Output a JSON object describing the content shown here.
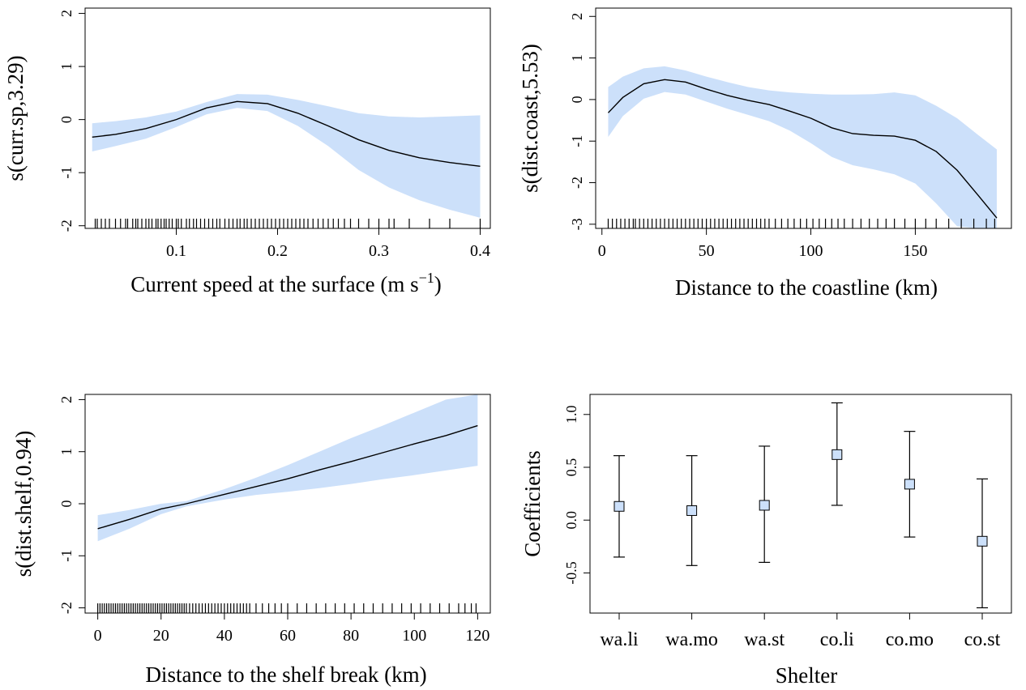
{
  "chart_data": [
    {
      "type": "line",
      "panel": "top-left",
      "xlabel": "Current speed at the surface (m s",
      "xlabel_sup": "−1",
      "xlabel_close": ")",
      "ylabel": "s(curr.sp,3.29)",
      "xlim": [
        0.01,
        0.41
      ],
      "ylim": [
        -2.05,
        2.1
      ],
      "xticks": [
        0.1,
        0.2,
        0.3,
        0.4
      ],
      "xtick_labels": [
        "0.1",
        "0.2",
        "0.3",
        "0.4"
      ],
      "yticks": [
        -2,
        -1,
        0,
        1,
        2
      ],
      "ytick_labels": [
        "-2",
        "-1",
        "0",
        "1",
        "2"
      ],
      "band_color": "#cce0fa",
      "x": [
        0.017,
        0.04,
        0.07,
        0.1,
        0.13,
        0.16,
        0.19,
        0.22,
        0.25,
        0.28,
        0.31,
        0.34,
        0.37,
        0.4
      ],
      "fit": [
        -0.33,
        -0.28,
        -0.17,
        0.0,
        0.22,
        0.34,
        0.3,
        0.12,
        -0.12,
        -0.38,
        -0.58,
        -0.72,
        -0.81,
        -0.88
      ],
      "upper": [
        -0.07,
        -0.03,
        0.04,
        0.15,
        0.33,
        0.48,
        0.47,
        0.37,
        0.25,
        0.12,
        0.06,
        0.04,
        0.06,
        0.08
      ],
      "lower": [
        -0.6,
        -0.5,
        -0.36,
        -0.14,
        0.1,
        0.22,
        0.16,
        -0.12,
        -0.5,
        -0.95,
        -1.28,
        -1.52,
        -1.7,
        -1.85
      ],
      "rug": [
        0.02,
        0.022,
        0.026,
        0.03,
        0.034,
        0.04,
        0.045,
        0.05,
        0.052,
        0.057,
        0.06,
        0.062,
        0.066,
        0.07,
        0.073,
        0.076,
        0.08,
        0.082,
        0.085,
        0.088,
        0.09,
        0.093,
        0.096,
        0.1,
        0.102,
        0.105,
        0.11,
        0.113,
        0.117,
        0.12,
        0.124,
        0.128,
        0.132,
        0.136,
        0.14,
        0.143,
        0.148,
        0.152,
        0.156,
        0.16,
        0.163,
        0.167,
        0.17,
        0.174,
        0.178,
        0.182,
        0.186,
        0.19,
        0.194,
        0.198,
        0.202,
        0.206,
        0.21,
        0.214,
        0.218,
        0.222,
        0.226,
        0.23,
        0.235,
        0.24,
        0.245,
        0.25,
        0.255,
        0.26,
        0.266,
        0.272,
        0.28,
        0.29,
        0.3,
        0.31,
        0.315,
        0.33,
        0.35,
        0.37,
        0.4
      ]
    },
    {
      "type": "line",
      "panel": "top-right",
      "xlabel": "Distance to the coastline (km)",
      "ylabel": "s(dist.coast,5.53)",
      "xlim": [
        -3,
        196
      ],
      "ylim": [
        -3.1,
        2.2
      ],
      "xticks": [
        0,
        50,
        100,
        150
      ],
      "xtick_labels": [
        "0",
        "50",
        "100",
        "150"
      ],
      "yticks": [
        -3,
        -2,
        -1,
        0,
        1,
        2
      ],
      "ytick_labels": [
        "-3",
        "-2",
        "-1",
        "0",
        "1",
        "2"
      ],
      "band_color": "#cce0fa",
      "x": [
        3,
        10,
        20,
        30,
        40,
        50,
        60,
        70,
        80,
        90,
        100,
        110,
        120,
        130,
        140,
        150,
        160,
        170,
        180,
        189
      ],
      "fit": [
        -0.32,
        0.05,
        0.38,
        0.48,
        0.42,
        0.25,
        0.1,
        -0.02,
        -0.12,
        -0.28,
        -0.45,
        -0.68,
        -0.82,
        -0.86,
        -0.88,
        -0.98,
        -1.25,
        -1.7,
        -2.3,
        -2.85
      ],
      "upper": [
        0.3,
        0.55,
        0.75,
        0.8,
        0.7,
        0.55,
        0.42,
        0.3,
        0.22,
        0.17,
        0.14,
        0.12,
        0.12,
        0.13,
        0.17,
        0.1,
        -0.15,
        -0.45,
        -0.85,
        -1.2
      ],
      "lower": [
        -0.9,
        -0.4,
        0.02,
        0.18,
        0.12,
        -0.05,
        -0.22,
        -0.37,
        -0.52,
        -0.75,
        -1.05,
        -1.38,
        -1.58,
        -1.68,
        -1.8,
        -2.02,
        -2.5,
        -3.05,
        -3.1,
        -3.1
      ],
      "rug": [
        3,
        5,
        7,
        9,
        11,
        13,
        15,
        16,
        18,
        20,
        22,
        24,
        26,
        28,
        30,
        32,
        34,
        36,
        38,
        40,
        42,
        44,
        46,
        48,
        50,
        52,
        54,
        56,
        58,
        60,
        62,
        64,
        66,
        68,
        70,
        72,
        74,
        76,
        78,
        80,
        83,
        86,
        89,
        92,
        95,
        98,
        101,
        104,
        107,
        110,
        113,
        116,
        120,
        124,
        128,
        132,
        136,
        140,
        145,
        150,
        155,
        160,
        166,
        172,
        178,
        184,
        188
      ]
    },
    {
      "type": "line",
      "panel": "bottom-left",
      "xlabel": "Distance to the shelf break (km)",
      "ylabel": "s(dist.shelf,0.94)",
      "xlim": [
        -4,
        124
      ],
      "ylim": [
        -2.1,
        2.1
      ],
      "xticks": [
        0,
        20,
        40,
        60,
        80,
        100,
        120
      ],
      "xtick_labels": [
        "0",
        "20",
        "40",
        "60",
        "80",
        "100",
        "120"
      ],
      "yticks": [
        -2,
        -1,
        0,
        1,
        2
      ],
      "ytick_labels": [
        "-2",
        "-1",
        "0",
        "1",
        "2"
      ],
      "band_color": "#cce0fa",
      "x": [
        0,
        10,
        20,
        28,
        40,
        50,
        60,
        70,
        80,
        90,
        100,
        110,
        120
      ],
      "fit": [
        -0.48,
        -0.3,
        -0.1,
        0.0,
        0.18,
        0.33,
        0.48,
        0.65,
        0.81,
        0.98,
        1.15,
        1.31,
        1.5
      ],
      "upper": [
        -0.22,
        -0.12,
        0.0,
        0.05,
        0.28,
        0.5,
        0.74,
        1.0,
        1.26,
        1.5,
        1.75,
        2.0,
        2.2
      ],
      "lower": [
        -0.72,
        -0.48,
        -0.2,
        -0.05,
        0.08,
        0.17,
        0.23,
        0.3,
        0.38,
        0.47,
        0.55,
        0.64,
        0.73
      ],
      "rug": [
        0,
        0.7,
        1.4,
        2.1,
        2.8,
        3.5,
        4.2,
        4.9,
        5.6,
        6.3,
        7,
        7.7,
        8.4,
        9.1,
        9.8,
        10.5,
        11.2,
        11.9,
        12.6,
        13.3,
        14,
        14.7,
        15.4,
        16.1,
        16.8,
        17.5,
        18.2,
        18.9,
        19.6,
        20.3,
        21,
        21.7,
        22.4,
        23.1,
        23.8,
        24.5,
        25.2,
        25.9,
        26.6,
        27.3,
        28,
        29,
        30,
        31,
        32,
        33,
        34,
        35,
        36,
        37,
        38,
        39,
        40,
        41,
        42,
        43,
        44,
        45,
        46,
        47,
        48,
        50,
        52,
        54,
        56,
        58,
        60,
        63,
        66,
        69,
        72,
        75,
        78,
        81,
        84,
        87,
        90,
        93,
        96,
        99,
        102,
        105,
        108,
        111,
        114,
        116,
        118,
        119.5
      ]
    },
    {
      "type": "scatter",
      "panel": "bottom-right",
      "xlabel": "Shelter",
      "ylabel": "Coefficients",
      "ylim": [
        -0.88,
        1.19
      ],
      "yticks": [
        -0.5,
        0.0,
        0.5,
        1.0
      ],
      "ytick_labels": [
        "-0.5",
        "0.0",
        "0.5",
        "1.0"
      ],
      "categories": [
        "wa.li",
        "wa.mo",
        "wa.st",
        "co.li",
        "co.mo",
        "co.st"
      ],
      "values": [
        0.13,
        0.09,
        0.14,
        0.62,
        0.34,
        -0.2
      ],
      "lower": [
        -0.35,
        -0.43,
        -0.4,
        0.14,
        -0.16,
        -0.83
      ],
      "upper": [
        0.61,
        0.61,
        0.7,
        1.11,
        0.84,
        0.39
      ],
      "marker_color": "#cce0fa"
    }
  ]
}
